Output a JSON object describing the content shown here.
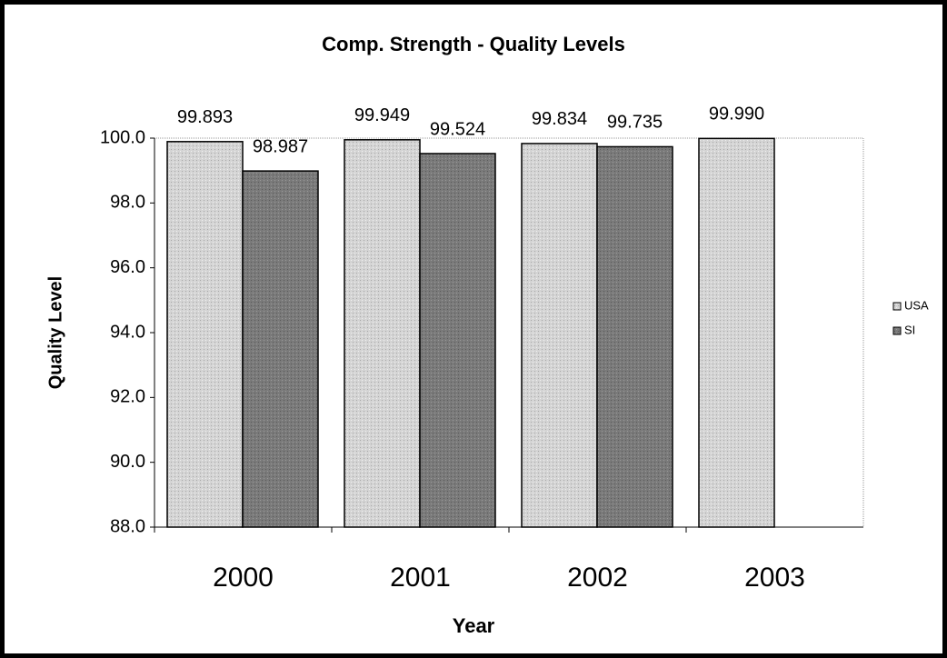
{
  "chart_data": {
    "type": "bar",
    "title": "Comp. Strength - Quality Levels",
    "x_label": "Year",
    "y_label": "Quality Level",
    "categories": [
      "2000",
      "2001",
      "2002",
      "2003"
    ],
    "series": [
      {
        "name": "USA",
        "color": "#d0d0d0",
        "values": [
          99.893,
          99.949,
          99.834,
          99.99
        ],
        "value_labels": [
          "99.893",
          "99.949",
          "99.834",
          "99.990"
        ]
      },
      {
        "name": "SI",
        "color": "#7a7a7a",
        "values": [
          98.987,
          99.524,
          99.735,
          null
        ],
        "value_labels": [
          "98.987",
          "99.524",
          "99.735",
          null
        ]
      }
    ],
    "ylim": [
      88,
      100
    ],
    "yticks": [
      {
        "value": 88,
        "label": "88.0"
      },
      {
        "value": 90,
        "label": "90.0"
      },
      {
        "value": 92,
        "label": "92.0"
      },
      {
        "value": 94,
        "label": "94.0"
      },
      {
        "value": 96,
        "label": "96.0"
      },
      {
        "value": 98,
        "label": "98.0"
      },
      {
        "value": 100,
        "label": "100.0"
      }
    ],
    "legend": "right"
  }
}
